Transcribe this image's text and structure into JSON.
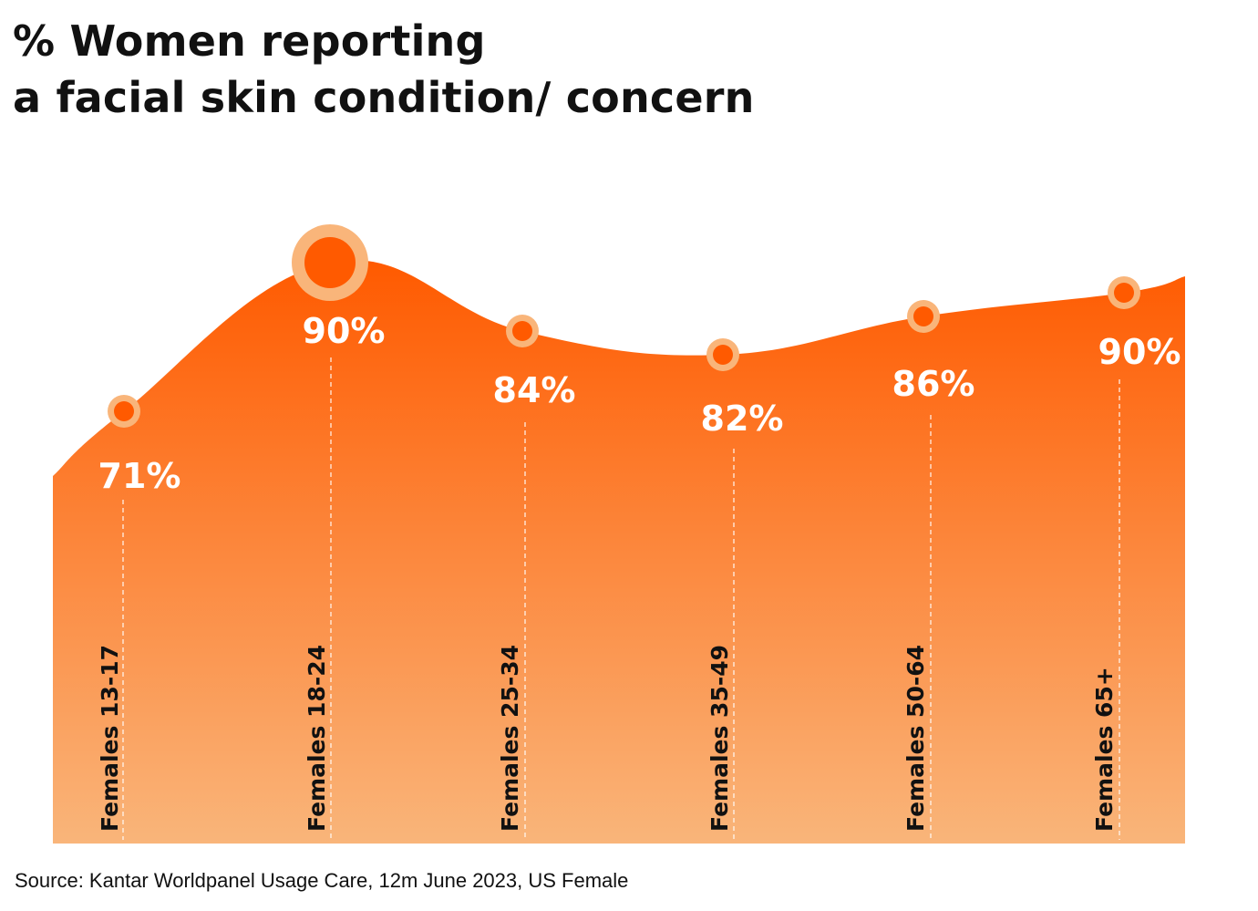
{
  "title": {
    "line1": "% Women reporting",
    "line2": "a facial skin condition/ concern"
  },
  "source": "Source: Kantar Worldpanel Usage Care, 12m June 2023, US Female",
  "colors": {
    "area_top": "#ff5a00",
    "area_bottom": "#f9b57a",
    "marker_fill": "#ff5a00",
    "marker_ring": "#f9b57a"
  },
  "chart_data": {
    "type": "area",
    "categories": [
      "Females 13-17",
      "Females 18-24",
      "Females 25-34",
      "Females 35-49",
      "Females 50-64",
      "Females 65+"
    ],
    "values": [
      71,
      90,
      84,
      82,
      86,
      90
    ],
    "value_labels": [
      "71%",
      "90%",
      "84%",
      "82%",
      "86%",
      "90%"
    ],
    "highlight_index": 1,
    "title": "% Women reporting a facial skin condition/ concern",
    "grid": false,
    "legend": "none"
  }
}
